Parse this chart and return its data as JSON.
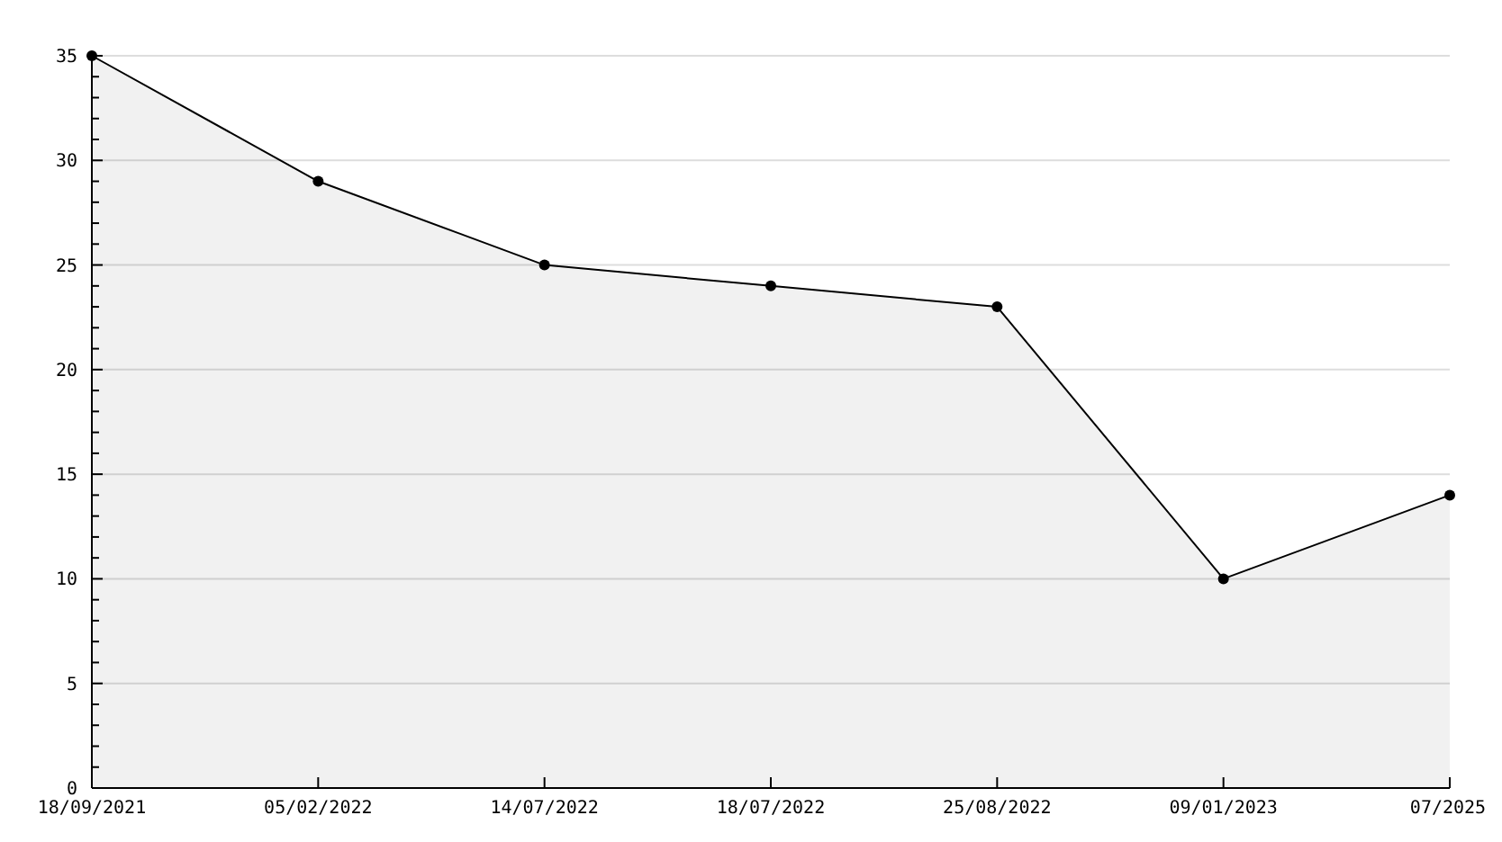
{
  "chart_data": {
    "type": "area",
    "categories": [
      "18/09/2021",
      "05/02/2022",
      "14/07/2022",
      "18/07/2022",
      "25/08/2022",
      "09/01/2023",
      "07/2025"
    ],
    "series": [
      {
        "color": "#000000",
        "values": [
          35,
          29,
          25,
          24,
          23,
          10,
          14
        ]
      }
    ],
    "ylim": [
      0,
      35
    ],
    "yticks": [
      0,
      5,
      10,
      15,
      20,
      25,
      30,
      35
    ],
    "grid": "y",
    "marker": "circle",
    "line_style": "solid"
  }
}
